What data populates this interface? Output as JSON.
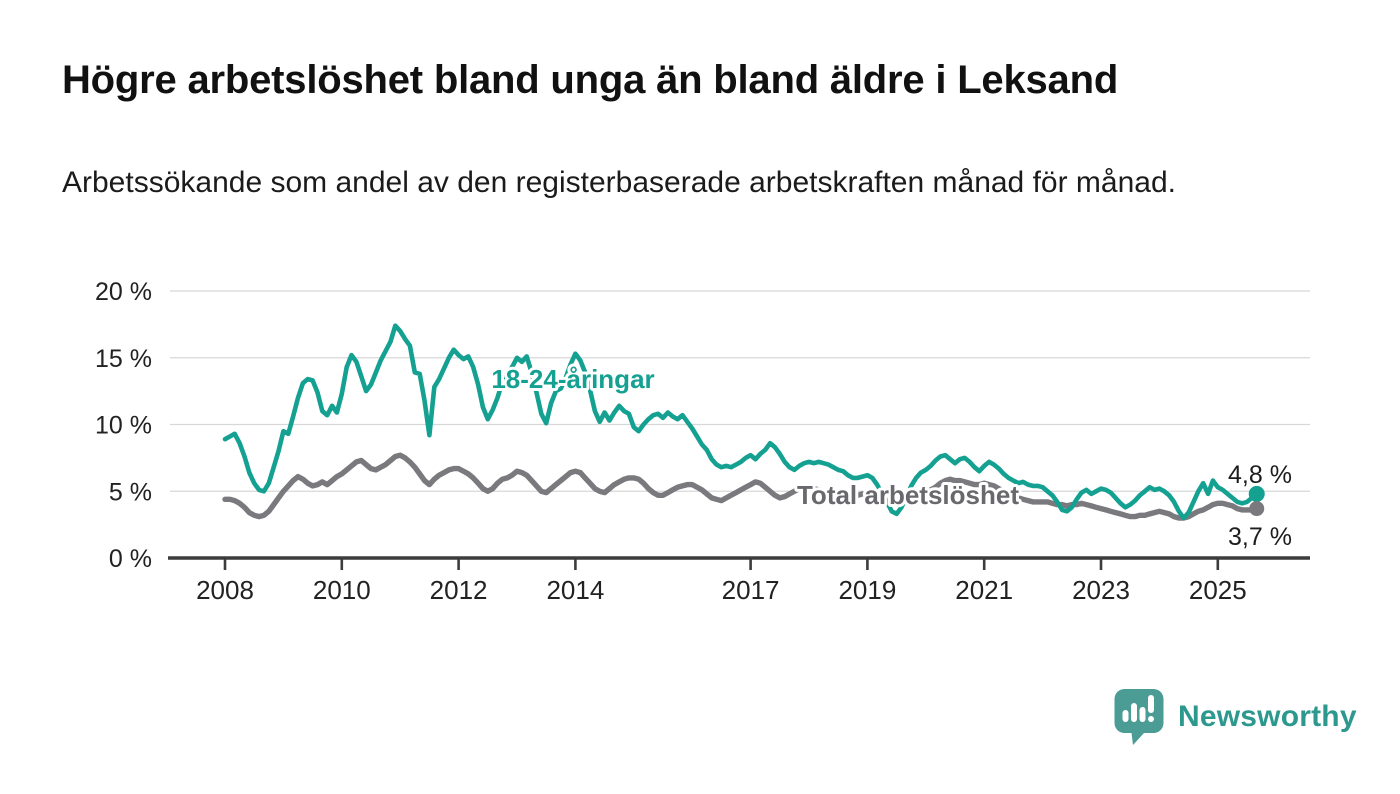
{
  "title": "Högre arbetslöshet bland unga än bland äldre i Leksand",
  "subtitle": "Arbetssökande som andel av den registerbaserade arbetskraften månad för månad.",
  "logo": {
    "text": "Newsworthy"
  },
  "colors": {
    "young": "#14a191",
    "total": "#7a7a7e",
    "total_label": "#68686d",
    "grid": "#d8d8d8",
    "axis": "#3c3c3c",
    "tick_text": "#222222",
    "value_text": "#1d1d1d",
    "logo_bubble": "#4a9c95",
    "logo_text": "#2d998e",
    "background": "#ffffff"
  },
  "chart_data": {
    "type": "line",
    "title": "Högre arbetslöshet bland unga än bland äldre i Leksand",
    "subtitle": "Arbetssökande som andel av den registerbaserade arbetskraften månad för månad.",
    "unit": "%",
    "ylim": [
      0,
      20
    ],
    "grid": true,
    "legend_position": "inline-labels",
    "y_ticks": [
      {
        "value": 0,
        "label": "0 %"
      },
      {
        "value": 5,
        "label": "5 %"
      },
      {
        "value": 10,
        "label": "10 %"
      },
      {
        "value": 15,
        "label": "15 %"
      },
      {
        "value": 20,
        "label": "20 %"
      }
    ],
    "x_ticks": [
      {
        "value": 2008,
        "label": "2008"
      },
      {
        "value": 2010,
        "label": "2010"
      },
      {
        "value": 2012,
        "label": "2012"
      },
      {
        "value": 2014,
        "label": "2014"
      },
      {
        "value": 2017,
        "label": "2017"
      },
      {
        "value": 2019,
        "label": "2019"
      },
      {
        "value": 2021,
        "label": "2021"
      },
      {
        "value": 2023,
        "label": "2023"
      },
      {
        "value": 2025,
        "label": "2025"
      }
    ],
    "x_start_year": 2008,
    "x_start_month": 1,
    "x_interval": "monthly",
    "series": [
      {
        "name": "18-24-åringar",
        "color_key": "young",
        "end_label": "4,8 %",
        "end_value": 4.8,
        "values": [
          8.9,
          9.1,
          9.3,
          8.6,
          7.6,
          6.4,
          5.6,
          5.1,
          5.0,
          5.6,
          6.8,
          8.0,
          9.5,
          9.3,
          10.6,
          12.0,
          13.1,
          13.4,
          13.3,
          12.4,
          11.0,
          10.7,
          11.4,
          10.9,
          12.3,
          14.3,
          15.2,
          14.7,
          13.6,
          12.5,
          13.0,
          13.9,
          14.8,
          15.5,
          16.2,
          17.4,
          17.0,
          16.4,
          15.9,
          13.9,
          13.8,
          11.8,
          9.2,
          12.8,
          13.4,
          14.2,
          15.0,
          15.6,
          15.2,
          14.9,
          15.1,
          14.3,
          13.0,
          11.3,
          10.4,
          11.1,
          12.0,
          13.2,
          13.8,
          14.3,
          15.0,
          14.7,
          15.1,
          13.9,
          12.4,
          10.8,
          10.1,
          11.6,
          12.5,
          12.7,
          13.5,
          14.5,
          15.3,
          14.8,
          13.9,
          12.6,
          11.0,
          10.2,
          10.9,
          10.3,
          10.9,
          11.4,
          11.0,
          10.8,
          9.8,
          9.5,
          10.0,
          10.4,
          10.7,
          10.8,
          10.5,
          10.9,
          10.6,
          10.4,
          10.7,
          10.2,
          9.7,
          9.1,
          8.5,
          8.1,
          7.4,
          7.0,
          6.8,
          6.9,
          6.8,
          7.0,
          7.2,
          7.5,
          7.7,
          7.4,
          7.8,
          8.1,
          8.6,
          8.3,
          7.8,
          7.2,
          6.8,
          6.6,
          6.9,
          7.1,
          7.2,
          7.1,
          7.2,
          7.1,
          7.0,
          6.8,
          6.6,
          6.5,
          6.2,
          6.0,
          6.0,
          6.1,
          6.2,
          6.0,
          5.5,
          4.8,
          4.2,
          3.5,
          3.3,
          3.8,
          4.6,
          5.4,
          6.0,
          6.4,
          6.6,
          6.9,
          7.3,
          7.6,
          7.7,
          7.4,
          7.1,
          7.4,
          7.5,
          7.2,
          6.8,
          6.5,
          6.9,
          7.2,
          7.0,
          6.7,
          6.3,
          6.0,
          5.8,
          5.6,
          5.7,
          5.5,
          5.4,
          5.4,
          5.3,
          5.0,
          4.7,
          4.2,
          3.6,
          3.5,
          3.8,
          4.4,
          4.9,
          5.1,
          4.8,
          5.0,
          5.2,
          5.1,
          4.9,
          4.5,
          4.1,
          3.8,
          4.0,
          4.3,
          4.7,
          5.0,
          5.3,
          5.1,
          5.2,
          5.0,
          4.7,
          4.2,
          3.5,
          3.0,
          3.4,
          4.2,
          5.0,
          5.6,
          4.8,
          5.8,
          5.3,
          5.1,
          4.8,
          4.5,
          4.2,
          4.1,
          4.2,
          4.5,
          4.8
        ]
      },
      {
        "name": "Total arbetslöshet",
        "color_key": "total",
        "end_label": "3,7 %",
        "end_value": 3.7,
        "values": [
          4.4,
          4.4,
          4.3,
          4.1,
          3.8,
          3.4,
          3.2,
          3.1,
          3.2,
          3.5,
          4.0,
          4.5,
          5.0,
          5.4,
          5.8,
          6.1,
          5.9,
          5.6,
          5.4,
          5.5,
          5.7,
          5.5,
          5.8,
          6.1,
          6.3,
          6.6,
          6.9,
          7.2,
          7.3,
          7.0,
          6.7,
          6.6,
          6.8,
          7.0,
          7.3,
          7.6,
          7.7,
          7.5,
          7.2,
          6.8,
          6.3,
          5.8,
          5.5,
          5.9,
          6.2,
          6.4,
          6.6,
          6.7,
          6.7,
          6.5,
          6.3,
          6.0,
          5.6,
          5.2,
          5.0,
          5.2,
          5.6,
          5.9,
          6.0,
          6.2,
          6.5,
          6.4,
          6.2,
          5.8,
          5.4,
          5.0,
          4.9,
          5.2,
          5.5,
          5.8,
          6.1,
          6.4,
          6.5,
          6.4,
          6.0,
          5.6,
          5.2,
          5.0,
          4.9,
          5.2,
          5.5,
          5.7,
          5.9,
          6.0,
          6.0,
          5.9,
          5.6,
          5.2,
          4.9,
          4.7,
          4.7,
          4.9,
          5.1,
          5.3,
          5.4,
          5.5,
          5.5,
          5.3,
          5.1,
          4.8,
          4.5,
          4.4,
          4.3,
          4.5,
          4.7,
          4.9,
          5.1,
          5.3,
          5.5,
          5.7,
          5.6,
          5.3,
          5.0,
          4.7,
          4.5,
          4.6,
          4.8,
          5.0,
          5.2,
          5.3,
          5.3,
          5.2,
          5.1,
          4.9,
          4.7,
          4.5,
          4.3,
          4.4,
          4.5,
          4.6,
          4.7,
          4.8,
          4.8,
          4.8,
          4.7,
          4.5,
          4.3,
          4.1,
          4.1,
          4.2,
          4.3,
          4.5,
          4.6,
          4.8,
          4.9,
          5.1,
          5.3,
          5.6,
          5.8,
          5.9,
          5.8,
          5.8,
          5.7,
          5.6,
          5.5,
          5.5,
          5.6,
          5.5,
          5.4,
          5.2,
          5.0,
          4.8,
          4.6,
          4.5,
          4.4,
          4.3,
          4.2,
          4.2,
          4.2,
          4.2,
          4.1,
          4.0,
          4.0,
          3.9,
          4.0,
          4.0,
          4.1,
          4.0,
          3.9,
          3.8,
          3.7,
          3.6,
          3.5,
          3.4,
          3.3,
          3.2,
          3.1,
          3.1,
          3.2,
          3.2,
          3.3,
          3.4,
          3.5,
          3.4,
          3.3,
          3.1,
          3.0,
          3.0,
          3.1,
          3.3,
          3.5,
          3.6,
          3.8,
          4.0,
          4.1,
          4.1,
          4.0,
          3.9,
          3.7,
          3.6,
          3.6,
          3.6,
          3.7
        ]
      }
    ]
  }
}
